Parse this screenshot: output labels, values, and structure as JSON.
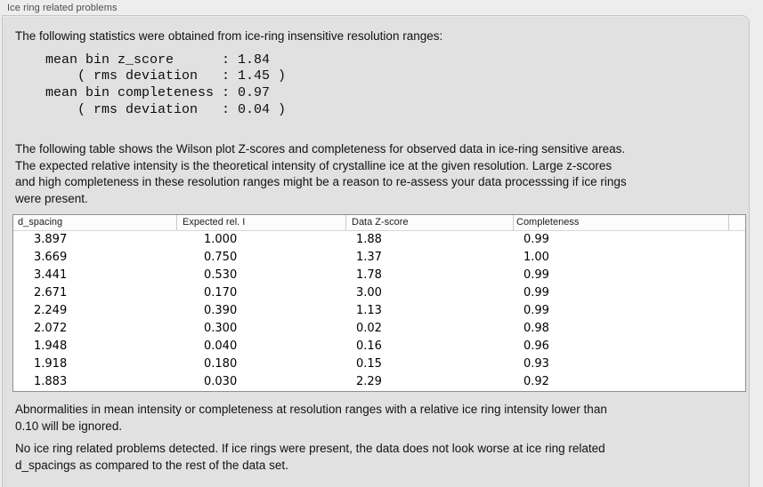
{
  "section": {
    "title": "Ice ring related problems"
  },
  "intro": "The following statistics were obtained from ice-ring insensitive resolution ranges:",
  "stats_block": [
    "mean bin z_score      : 1.84",
    "    ( rms deviation   : 1.45 )",
    "mean bin completeness : 0.97",
    "    ( rms deviation   : 0.04 )"
  ],
  "table_intro": [
    "The following table shows the Wilson plot Z-scores and completeness for observed data in ice-ring sensitive areas.",
    "The expected relative intensity is the theoretical intensity of crystalline ice at the given resolution. Large z-scores",
    "and high completeness in these resolution ranges might be a reason to re-assess your data processsing if ice rings",
    "were present."
  ],
  "table": {
    "columns": [
      "d_spacing",
      "Expected rel. I",
      "Data Z-score",
      "Completeness"
    ],
    "rows": [
      [
        "3.897",
        "1.000",
        "1.88",
        "0.99"
      ],
      [
        "3.669",
        "0.750",
        "1.37",
        "1.00"
      ],
      [
        "3.441",
        "0.530",
        "1.78",
        "0.99"
      ],
      [
        "2.671",
        "0.170",
        "3.00",
        "0.99"
      ],
      [
        "2.249",
        "0.390",
        "1.13",
        "0.99"
      ],
      [
        "2.072",
        "0.300",
        "0.02",
        "0.98"
      ],
      [
        "1.948",
        "0.040",
        "0.16",
        "0.96"
      ],
      [
        "1.918",
        "0.180",
        "0.15",
        "0.93"
      ],
      [
        "1.883",
        "0.030",
        "2.29",
        "0.92"
      ]
    ]
  },
  "note_ignore": [
    "Abnormalities in mean intensity or completeness at resolution ranges with a relative ice ring intensity lower than",
    "0.10 will be ignored."
  ],
  "conclusion": [
    "No ice ring related problems detected. If ice rings were present, the data does not look worse at ice ring related",
    "d_spacings as compared to the rest of the data set."
  ],
  "colors": {
    "outer_background": "#ededed",
    "panel_background": "#e1e1e1",
    "panel_border": "#c6c6c6",
    "table_border": "#8f8f8f",
    "table_background": "#ffffff",
    "text": "#141414"
  }
}
